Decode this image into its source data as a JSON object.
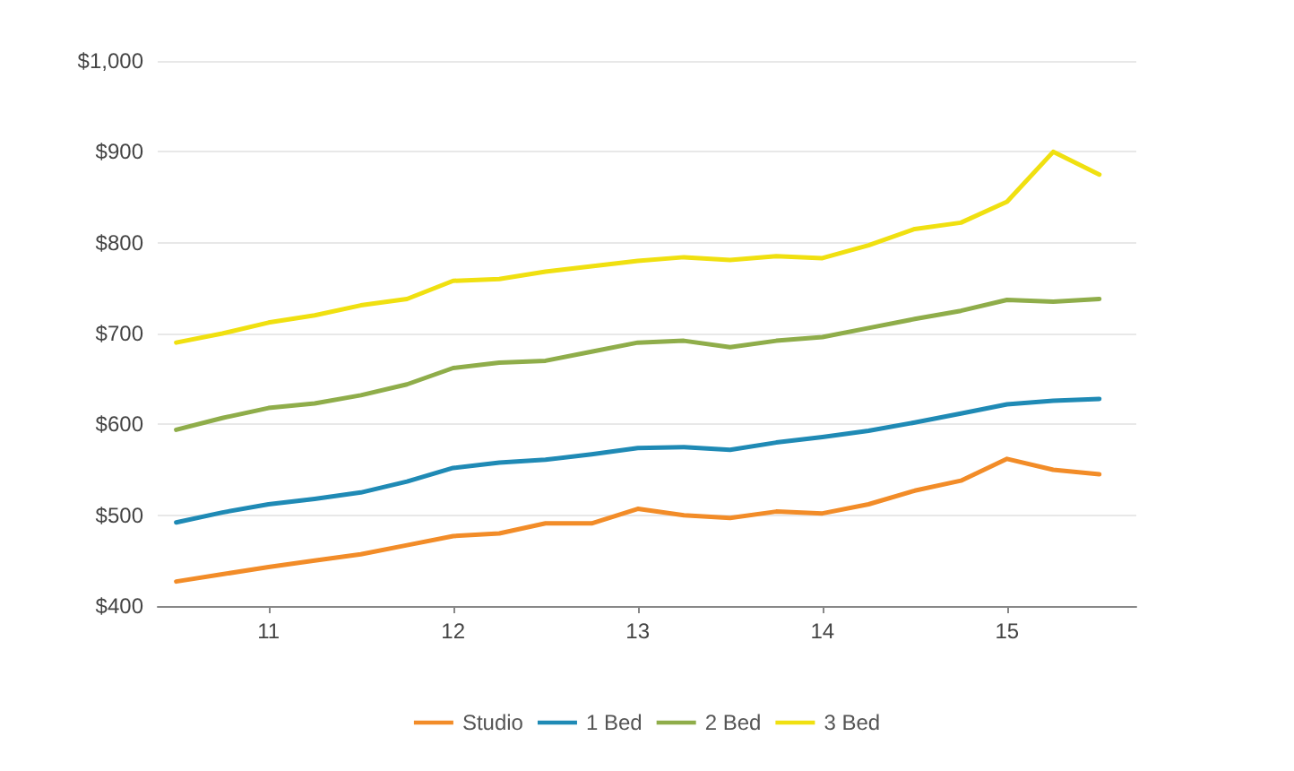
{
  "chart_data": {
    "type": "line",
    "x": [
      10.5,
      10.75,
      11,
      11.25,
      11.5,
      11.75,
      12,
      12.25,
      12.5,
      12.75,
      13,
      13.25,
      13.5,
      13.75,
      14,
      14.25,
      14.5,
      14.75,
      15,
      15.25,
      15.5
    ],
    "series": [
      {
        "name": "Studio",
        "color": "#f28c28",
        "values": [
          427,
          435,
          443,
          450,
          457,
          467,
          477,
          480,
          491,
          491,
          507,
          500,
          497,
          504,
          502,
          512,
          527,
          538,
          562,
          550,
          545
        ]
      },
      {
        "name": "1 Bed",
        "color": "#1f8ab5",
        "values": [
          492,
          503,
          512,
          518,
          525,
          537,
          552,
          558,
          561,
          567,
          574,
          575,
          572,
          580,
          586,
          593,
          602,
          612,
          622,
          626,
          628
        ]
      },
      {
        "name": "2 Bed",
        "color": "#8fad4a",
        "values": [
          594,
          607,
          618,
          623,
          632,
          644,
          662,
          668,
          670,
          680,
          690,
          692,
          685,
          692,
          696,
          706,
          716,
          725,
          737,
          735,
          738
        ]
      },
      {
        "name": "3 Bed",
        "color": "#f0e010",
        "values": [
          690,
          700,
          712,
          720,
          731,
          738,
          758,
          760,
          768,
          774,
          780,
          784,
          781,
          785,
          783,
          797,
          815,
          822,
          845,
          900,
          875
        ]
      }
    ],
    "xlim": [
      10.4,
      15.7
    ],
    "xticks": [
      11,
      12,
      13,
      14,
      15
    ],
    "ylim": [
      400,
      1000
    ],
    "yticks": [
      {
        "value": 400,
        "label": "$400"
      },
      {
        "value": 500,
        "label": "$500"
      },
      {
        "value": 600,
        "label": "$600"
      },
      {
        "value": 700,
        "label": "$700"
      },
      {
        "value": 800,
        "label": "$800"
      },
      {
        "value": 900,
        "label": "$900"
      },
      {
        "value": 1000,
        "label": "$1,000"
      }
    ],
    "grid": "y",
    "legend": "bottom",
    "marker": "none",
    "line_style": "solid"
  }
}
